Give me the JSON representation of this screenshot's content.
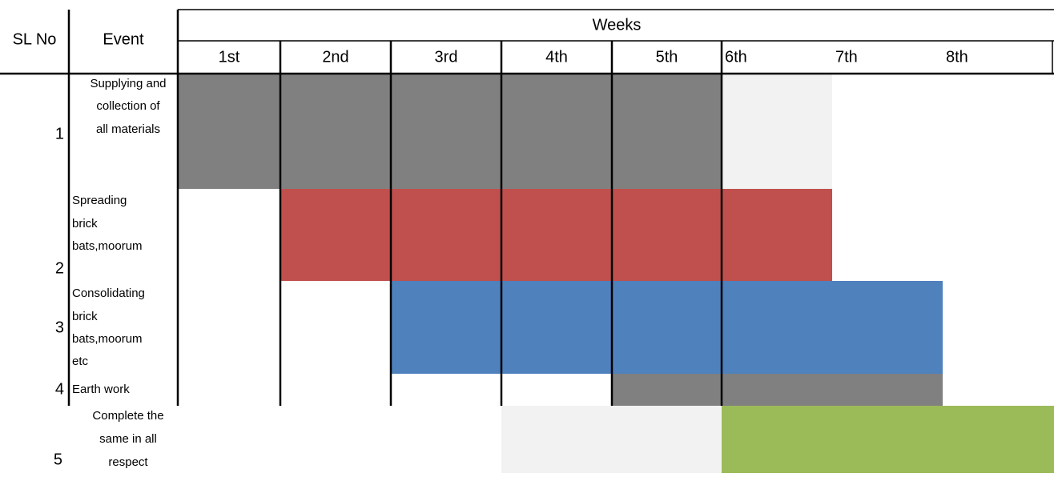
{
  "header": {
    "sl": "SL No",
    "event": "Event",
    "weeks": "Weeks",
    "week_labels": [
      "1st",
      "2nd",
      "3rd",
      "4th",
      "5th",
      "6th",
      "7th",
      "8th"
    ]
  },
  "rows": [
    {
      "sl": "1",
      "event": [
        "Supplying and",
        "collection of",
        "all materials"
      ],
      "cells": [
        "#808080",
        "#808080",
        "#808080",
        "#808080",
        "#808080",
        "#f2f2f2",
        null,
        null
      ]
    },
    {
      "sl": "2",
      "event": [
        "Spreading",
        "brick",
        "bats,moorum"
      ],
      "cells": [
        null,
        "#c0504d",
        "#c0504d",
        "#c0504d",
        "#c0504d",
        "#c0504d",
        null,
        null
      ]
    },
    {
      "sl": "3",
      "event": [
        "Consolidating",
        "brick",
        "bats,moorum",
        "etc"
      ],
      "cells": [
        null,
        null,
        "#4f81bd",
        "#4f81bd",
        "#4f81bd",
        "#4f81bd",
        "#4f81bd",
        null
      ]
    },
    {
      "sl": "4",
      "event": [
        "Earth work"
      ],
      "cells": [
        null,
        null,
        null,
        null,
        "#808080",
        "#808080",
        "#808080",
        null
      ]
    },
    {
      "sl": "5",
      "event": [
        "Complete the",
        "same in all",
        "respect"
      ],
      "cells": [
        null,
        null,
        null,
        "#f2f2f2",
        "#f2f2f2",
        "#9bbb59",
        "#9bbb59",
        "#9bbb59"
      ]
    }
  ]
}
